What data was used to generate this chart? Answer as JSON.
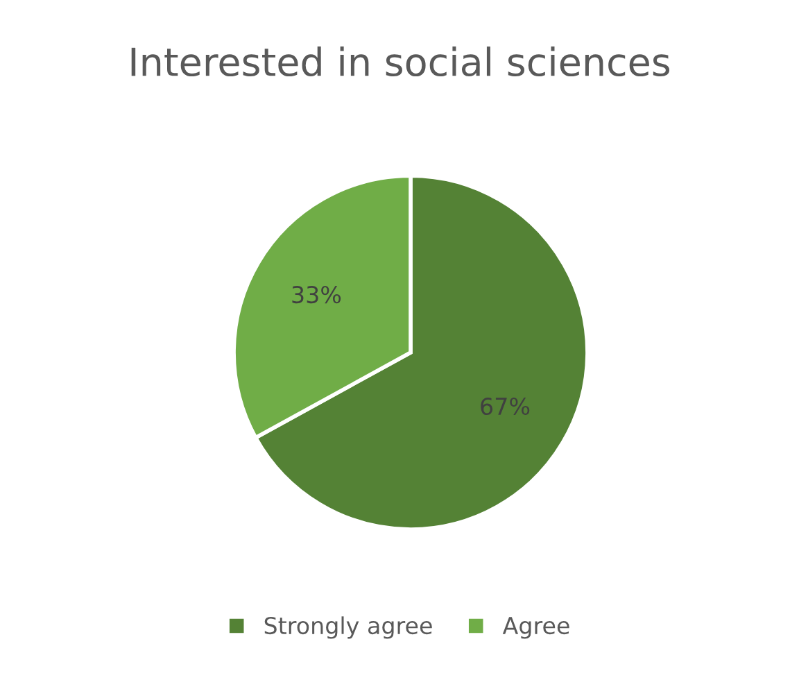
{
  "chart_data": {
    "type": "pie",
    "title": "Interested in social sciences",
    "categories": [
      "Strongly agree",
      "Agree"
    ],
    "values": [
      67,
      33
    ],
    "colors": [
      "#548235",
      "#70ad47"
    ],
    "value_labels": [
      "67%",
      "33%"
    ],
    "legend": "bottom"
  }
}
